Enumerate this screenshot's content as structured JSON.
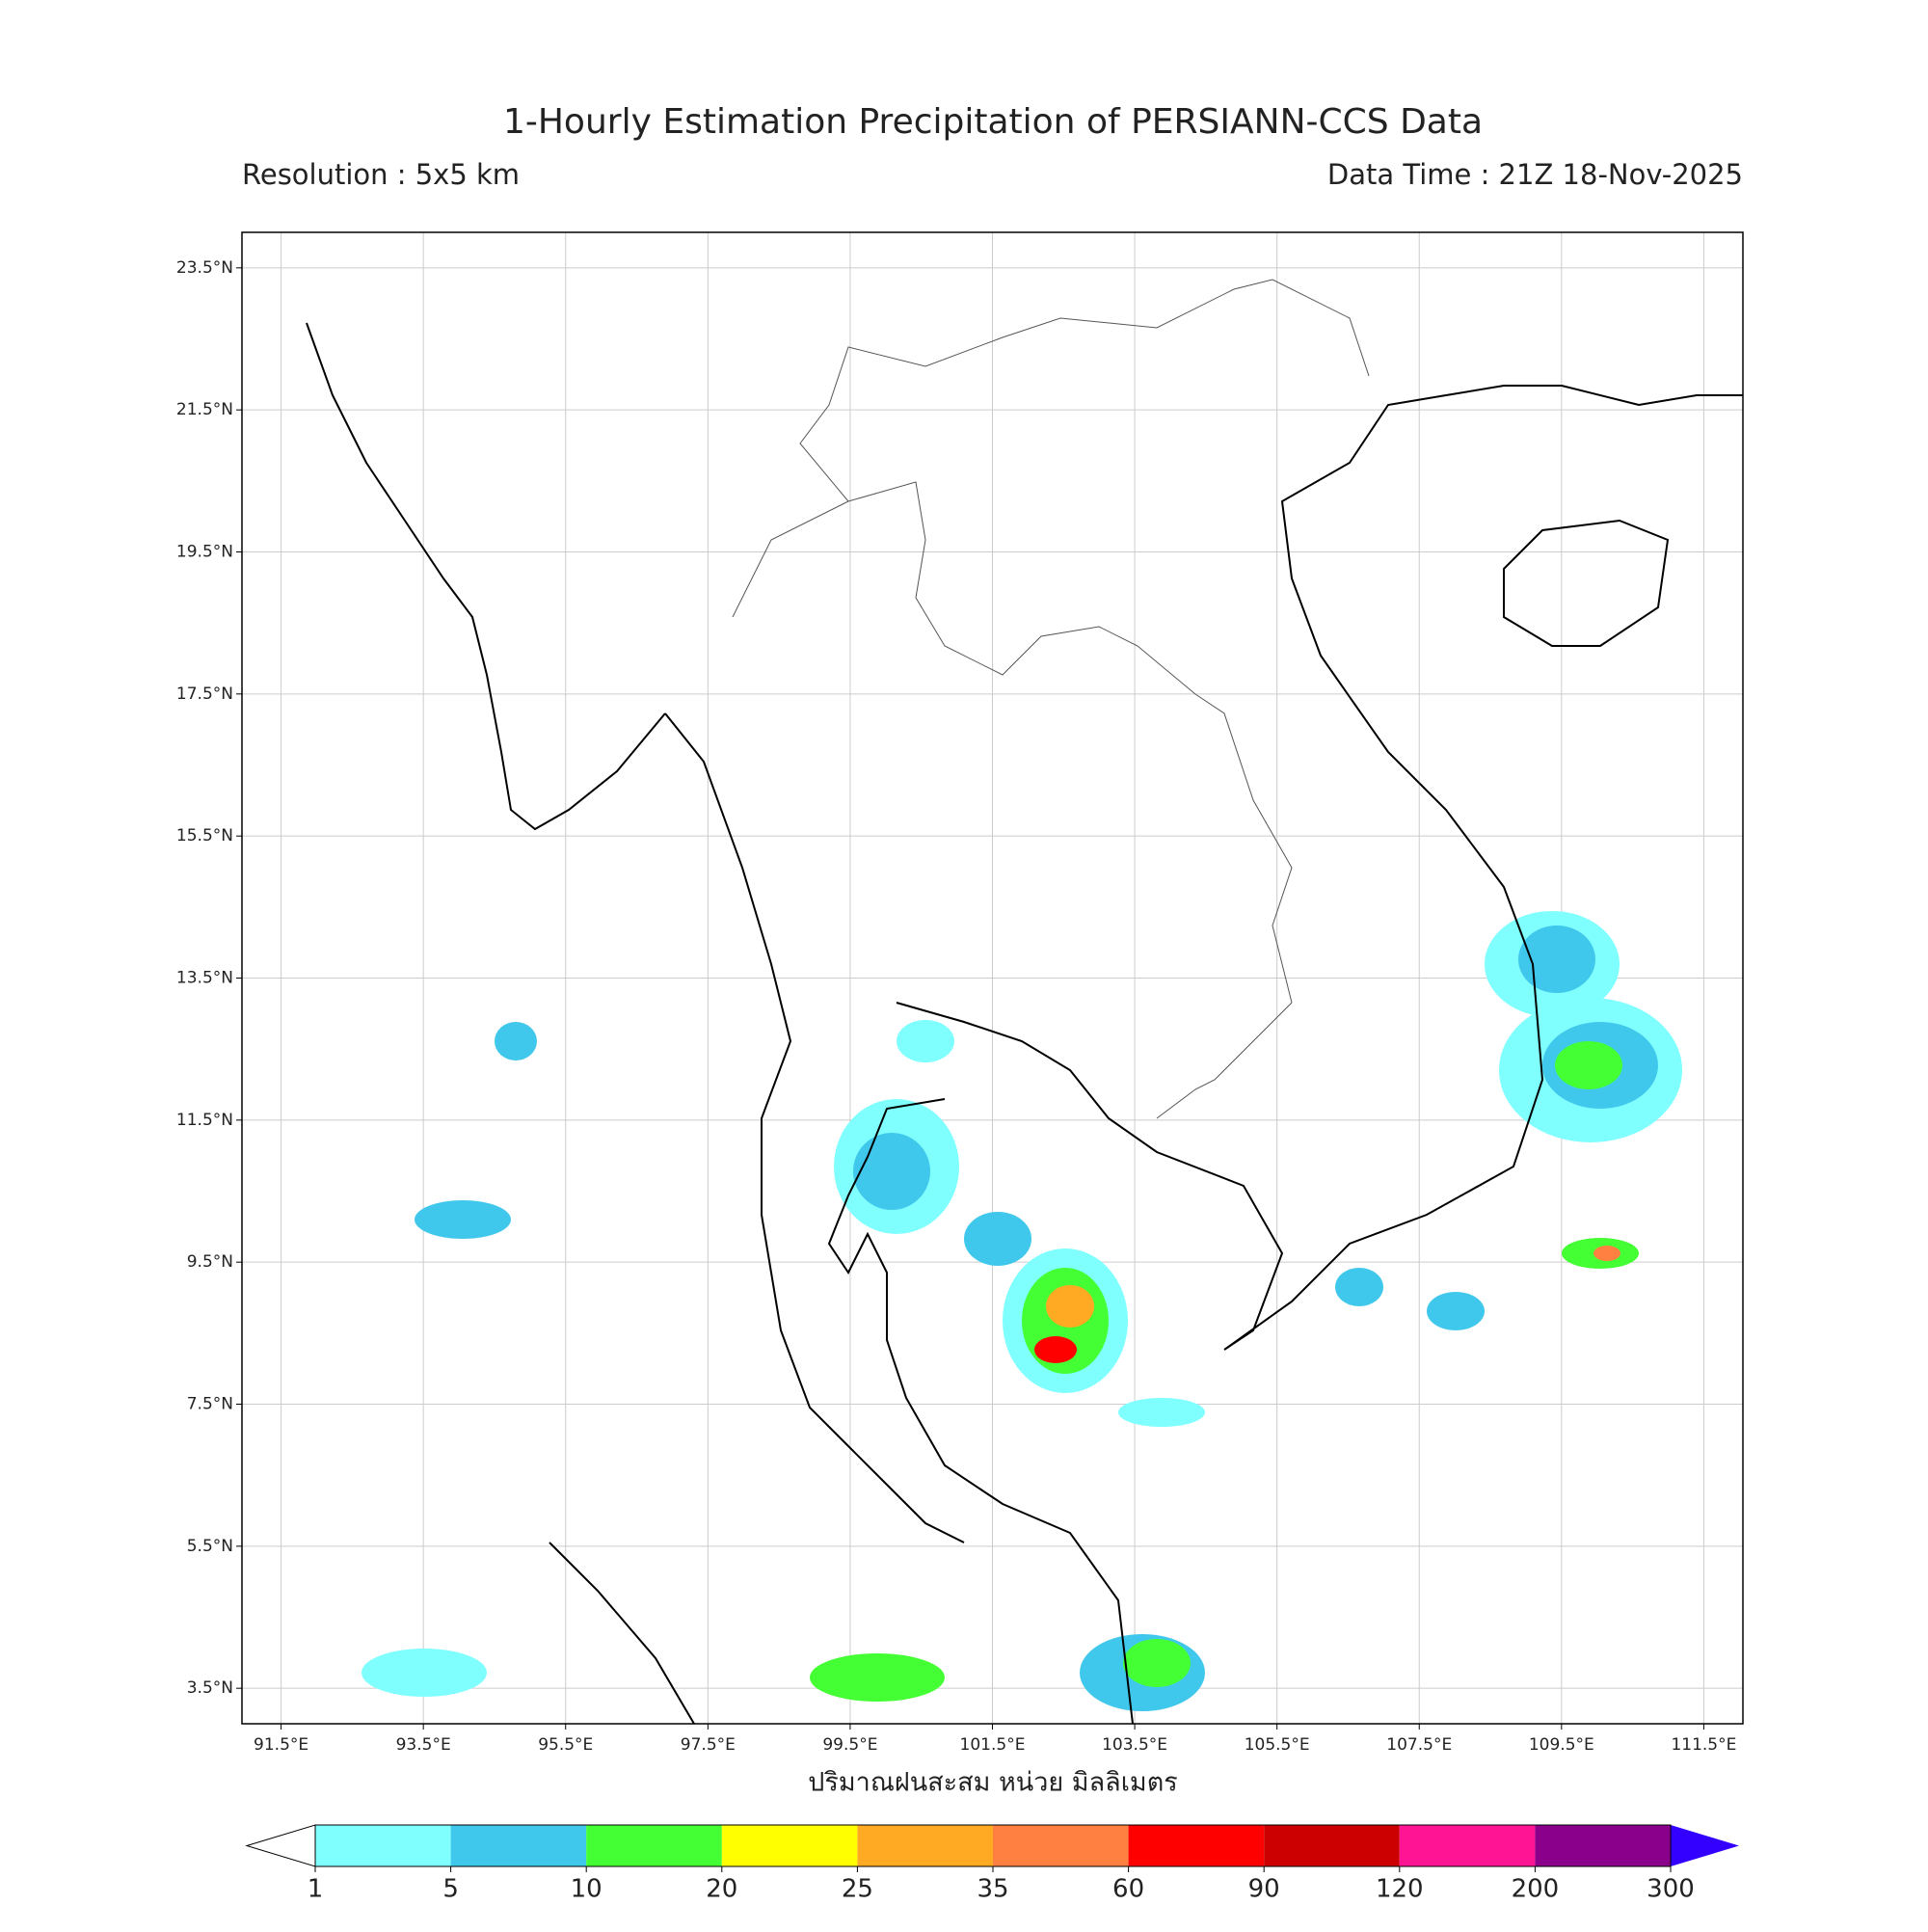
{
  "map": {
    "title": "1-Hourly Estimation Precipitation of PERSIANN-CCS Data",
    "subtitle_left": "Resolution : 5x5 km",
    "subtitle_right": "Data Time : 21Z 18-Nov-2025",
    "xlabel": "ปริมาณฝนสะสม หน่วย มิลลิเมตร",
    "xlim": [
      90.95,
      112.05
    ],
    "ylim": [
      3.0,
      24.0
    ],
    "grid": true,
    "xticks": [
      {
        "value": 91.5,
        "label": "91.5°E"
      },
      {
        "value": 93.5,
        "label": "93.5°E"
      },
      {
        "value": 95.5,
        "label": "95.5°E"
      },
      {
        "value": 97.5,
        "label": "97.5°E"
      },
      {
        "value": 99.5,
        "label": "99.5°E"
      },
      {
        "value": 101.5,
        "label": "101.5°E"
      },
      {
        "value": 103.5,
        "label": "103.5°E"
      },
      {
        "value": 105.5,
        "label": "105.5°E"
      },
      {
        "value": 107.5,
        "label": "107.5°E"
      },
      {
        "value": 109.5,
        "label": "109.5°E"
      },
      {
        "value": 111.5,
        "label": "111.5°E"
      }
    ],
    "yticks": [
      {
        "value": 3.5,
        "label": "3.5°N"
      },
      {
        "value": 5.5,
        "label": "5.5°N"
      },
      {
        "value": 7.5,
        "label": "7.5°N"
      },
      {
        "value": 9.5,
        "label": "9.5°N"
      },
      {
        "value": 11.5,
        "label": "11.5°N"
      },
      {
        "value": 13.5,
        "label": "13.5°N"
      },
      {
        "value": 15.5,
        "label": "15.5°N"
      },
      {
        "value": 17.5,
        "label": "17.5°N"
      },
      {
        "value": 19.5,
        "label": "19.5°N"
      },
      {
        "value": 21.5,
        "label": "21.5°N"
      },
      {
        "value": 23.5,
        "label": "23.5°N"
      }
    ],
    "colorbar": {
      "levels": [
        1,
        5,
        10,
        20,
        25,
        35,
        60,
        90,
        120,
        200,
        300
      ],
      "colors": [
        "#80ffff",
        "#40c8ec",
        "#44ff33",
        "#ffff00",
        "#ffaa22",
        "#ff8040",
        "#ff0000",
        "#cc0000",
        "#ff1493",
        "#8b008b"
      ],
      "under_color": "#ffffff",
      "over_color": "#3300ff"
    }
  }
}
